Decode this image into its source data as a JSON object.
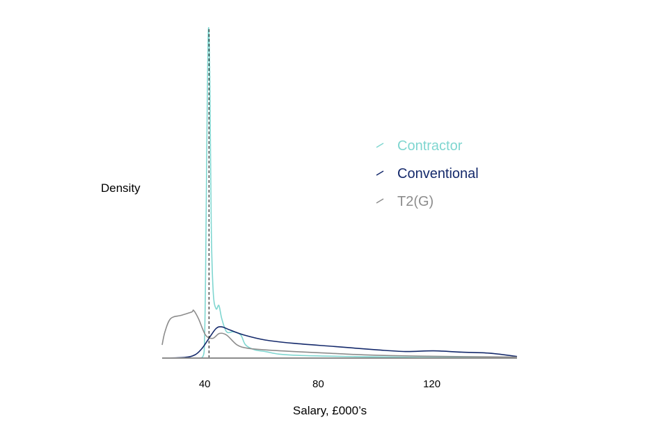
{
  "chart_data": {
    "type": "line",
    "title": "",
    "xlabel": "Salary, £000’s",
    "ylabel": "Density",
    "xlim": [
      25,
      150
    ],
    "ylim": [
      0,
      1
    ],
    "x_ticks": [
      40,
      80,
      120
    ],
    "grid": false,
    "legend_placement": "top-right",
    "reference_line": {
      "x": 41.5,
      "style": "dashed",
      "color": "#000000"
    },
    "series": [
      {
        "name": "Contractor",
        "color": "#7fd6d0",
        "x": [
          38.8,
          39.8,
          40.3,
          40.8,
          41.3,
          41.8,
          42.3,
          43.0,
          44.0,
          45.0,
          46.0,
          47.7,
          50.2,
          52.7,
          54.4,
          57.6,
          61.3,
          66.2,
          73.6,
          83.5,
          95.9,
          115.6,
          150
        ],
        "y": [
          0,
          0.02,
          0.25,
          0.7,
          1.0,
          0.85,
          0.4,
          0.2,
          0.15,
          0.16,
          0.12,
          0.08,
          0.08,
          0.07,
          0.04,
          0.025,
          0.02,
          0.012,
          0.008,
          0.006,
          0.004,
          0.002,
          0.001
        ]
      },
      {
        "name": "Conventional",
        "color": "#14296b",
        "x": [
          25,
          32.9,
          36.6,
          39.1,
          41.5,
          44.0,
          46.0,
          49.0,
          53.9,
          61.3,
          71.2,
          86.0,
          100.8,
          110.7,
          120.6,
          130.4,
          140.3,
          150
        ],
        "y": [
          0,
          0.002,
          0.01,
          0.03,
          0.06,
          0.09,
          0.095,
          0.085,
          0.07,
          0.055,
          0.045,
          0.035,
          0.025,
          0.02,
          0.022,
          0.018,
          0.015,
          0.005
        ]
      },
      {
        "name": "T2(G)",
        "color": "#8c8c8c",
        "x": [
          25,
          26,
          28,
          31.7,
          35.4,
          36.1,
          37.8,
          40.3,
          42.8,
          45.2,
          47.7,
          51.4,
          55.1,
          61.3,
          71.2,
          83.5,
          95.9,
          115.6,
          150
        ],
        "y": [
          0.04,
          0.08,
          0.12,
          0.13,
          0.14,
          0.145,
          0.12,
          0.07,
          0.06,
          0.075,
          0.07,
          0.04,
          0.03,
          0.025,
          0.02,
          0.015,
          0.01,
          0.006,
          0.003
        ]
      }
    ]
  }
}
